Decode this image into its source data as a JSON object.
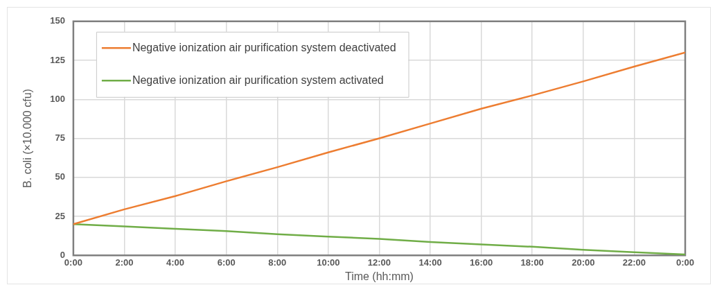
{
  "chart_data": {
    "type": "line",
    "xlabel": "Time (hh:mm)",
    "ylabel": "B. coli (×10.000 cfu)",
    "x": [
      0,
      2,
      4,
      6,
      8,
      10,
      12,
      14,
      16,
      18,
      20,
      22,
      24
    ],
    "series": [
      {
        "name": "Negative ionization air purification system deactivated",
        "color": "#ed7d31",
        "values": [
          20,
          29.5,
          38,
          47.5,
          56.5,
          66,
          75,
          84.5,
          94,
          102.5,
          111.5,
          121,
          130
        ]
      },
      {
        "name": "Negative ionization air purification system activated",
        "color": "#70ad47",
        "values": [
          20,
          18.5,
          17,
          15.5,
          13.5,
          12,
          10.5,
          8.5,
          7,
          5.5,
          3.5,
          2,
          0.5
        ]
      }
    ],
    "xlim": [
      0,
      24
    ],
    "xticks": [
      {
        "value": 0,
        "label": "0:00"
      },
      {
        "value": 2,
        "label": "2:00"
      },
      {
        "value": 4,
        "label": "4:00"
      },
      {
        "value": 6,
        "label": "6:00"
      },
      {
        "value": 8,
        "label": "8:00"
      },
      {
        "value": 10,
        "label": "10:00"
      },
      {
        "value": 12,
        "label": "12:00"
      },
      {
        "value": 14,
        "label": "14:00"
      },
      {
        "value": 16,
        "label": "16:00"
      },
      {
        "value": 18,
        "label": "18:00"
      },
      {
        "value": 20,
        "label": "20:00"
      },
      {
        "value": 22,
        "label": "22:00"
      },
      {
        "value": 24,
        "label": "0:00"
      }
    ],
    "ylim": [
      0,
      150
    ],
    "yticks": [
      0,
      25,
      50,
      75,
      100,
      125,
      150
    ],
    "grid": true,
    "legend": "top left",
    "marker": "none",
    "line_style": "solid"
  }
}
